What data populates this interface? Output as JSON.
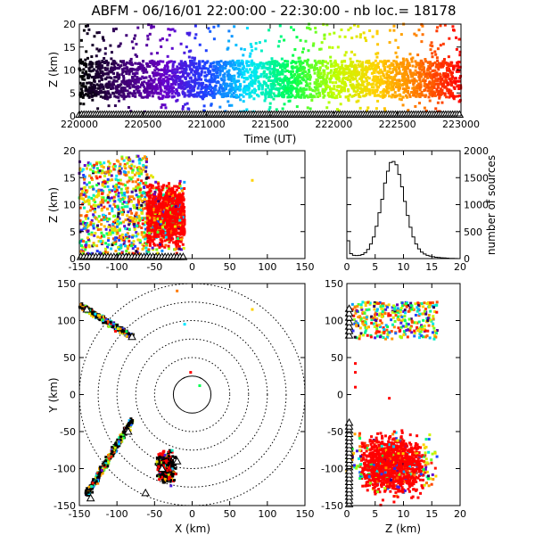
{
  "title": "ABFM - 06/16/01 22:00:00 - 22:30:00 - nb loc.=  18178",
  "colors": {
    "background": "#ffffff",
    "axes": "#000000",
    "histogram": "#000000"
  },
  "chart_data": [
    {
      "id": "time_height",
      "type": "scatter",
      "xlabel": "Time (UT)",
      "ylabel": "Z (km)",
      "xlim": [
        220000,
        223000
      ],
      "ylim": [
        0,
        20
      ],
      "xticks": [
        "220000",
        "220500",
        "221000",
        "221500",
        "222000",
        "222500",
        "223000"
      ],
      "yticks": [
        "0",
        "5",
        "10",
        "15",
        "20"
      ],
      "color_by": "time",
      "colormap": [
        "#000000",
        "#3a006a",
        "#6a00c8",
        "#1e40ff",
        "#00e6ff",
        "#00ff50",
        "#bfff00",
        "#ffd200",
        "#ff7a00",
        "#ff0000"
      ],
      "density_core_km": [
        4,
        12
      ],
      "station_marker": "triangle at Z=0"
    },
    {
      "id": "x_height",
      "type": "scatter",
      "xlabel": "",
      "ylabel": "Z (km)",
      "xlim": [
        -150,
        150
      ],
      "ylim": [
        0,
        20
      ],
      "xticks": [
        "-150",
        "-100",
        "-50",
        "0",
        "50",
        "100",
        "150"
      ],
      "yticks": [
        "0",
        "5",
        "10",
        "15",
        "20"
      ],
      "clusters": [
        {
          "x_range": [
            -150,
            -100
          ],
          "z_range": [
            0,
            18
          ]
        },
        {
          "x_range": [
            -100,
            -60
          ],
          "z_range": [
            0,
            19
          ]
        },
        {
          "x_range": [
            -60,
            -10
          ],
          "z_range": [
            0,
            20
          ]
        }
      ],
      "isolated_points": [
        [
          80,
          14.5
        ]
      ]
    },
    {
      "id": "altitude_histogram",
      "type": "histogram",
      "xlabel": "",
      "ylabel": "number of sources",
      "ylabel_side": "right",
      "xlim": [
        0,
        20
      ],
      "ylim": [
        0,
        2000
      ],
      "xticks": [
        "0",
        "5",
        "10",
        "15",
        "20"
      ],
      "yticks": [
        "0",
        "500",
        "1000",
        "1500",
        "2000"
      ],
      "bin_width_km": 0.5,
      "values": [
        330,
        90,
        60,
        55,
        60,
        75,
        110,
        170,
        270,
        400,
        600,
        850,
        1100,
        1400,
        1620,
        1780,
        1800,
        1740,
        1560,
        1330,
        1060,
        800,
        580,
        400,
        270,
        180,
        120,
        85,
        60,
        45,
        35,
        25,
        20,
        15,
        12,
        8,
        5,
        4,
        2,
        0
      ]
    },
    {
      "id": "plan_view",
      "type": "scatter",
      "xlabel": "X (km)",
      "ylabel": "Y (km)",
      "xlim": [
        -150,
        150
      ],
      "ylim": [
        -150,
        150
      ],
      "xticks": [
        "-150",
        "-100",
        "-50",
        "0",
        "50",
        "100",
        "150"
      ],
      "yticks": [
        "-150",
        "-100",
        "-50",
        "0",
        "50",
        "100",
        "150"
      ],
      "range_rings_km": [
        25,
        50,
        75,
        100,
        125,
        150
      ],
      "solid_ring_km": 25,
      "clusters": [
        {
          "from": [
            -148,
            120
          ],
          "to": [
            -80,
            78
          ]
        },
        {
          "from": [
            -140,
            -135
          ],
          "to": [
            -80,
            -35
          ]
        },
        {
          "center": [
            -35,
            -98
          ],
          "spread": [
            30,
            50
          ]
        }
      ],
      "isolated_points": [
        [
          80,
          115
        ],
        [
          -2,
          30
        ],
        [
          10,
          12
        ],
        [
          -20,
          140
        ],
        [
          -10,
          95
        ]
      ],
      "stations": [
        [
          -80,
          78
        ],
        [
          -140,
          115
        ],
        [
          -85,
          -50
        ],
        [
          -135,
          -140
        ],
        [
          -62,
          -133
        ],
        [
          -40,
          -100
        ],
        [
          -20,
          -90
        ]
      ]
    },
    {
      "id": "z_y",
      "type": "scatter",
      "xlabel": "Z (km)",
      "ylabel": "",
      "xlim": [
        0,
        20
      ],
      "ylim": [
        -150,
        150
      ],
      "xticks": [
        "0",
        "5",
        "10",
        "15",
        "20"
      ],
      "yticks": [
        "-150",
        "-100",
        "-50",
        "0",
        "50",
        "100",
        "150"
      ],
      "clusters": [
        {
          "z_range": [
            1,
            16
          ],
          "y_range": [
            75,
            125
          ]
        },
        {
          "z_range": [
            1,
            20
          ],
          "y_range": [
            -150,
            -35
          ]
        }
      ],
      "isolated_points": [
        [
          1.5,
          10
        ],
        [
          1.5,
          30
        ],
        [
          1.5,
          42
        ],
        [
          7.5,
          -5
        ]
      ]
    }
  ]
}
